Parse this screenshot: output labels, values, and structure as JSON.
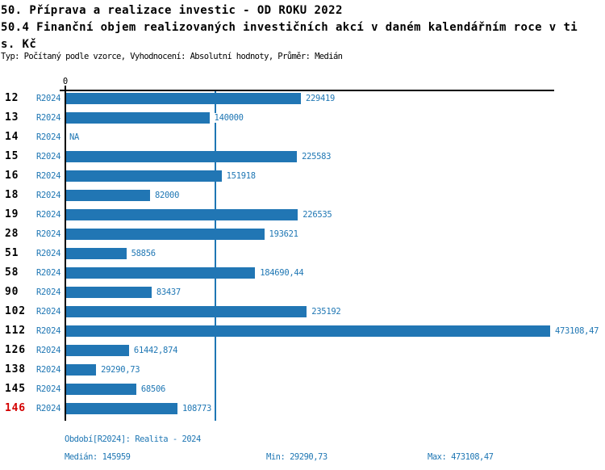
{
  "header": {
    "title_line1": "50. Příprava a realizace investic - OD ROKU 2022",
    "title_line2": "50.4 Finanční objem realizovaných investičních akcí v daném kalendářním roce v ti",
    "title_line3": "s. Kč",
    "meta": "Typ: Počítaný podle vzorce, Vyhodnocení: Absolutní hodnoty, Průměr: Medián"
  },
  "chart_data": {
    "type": "bar",
    "orientation": "horizontal",
    "title": "50.4 Finanční objem realizovaných investičních akcí v daném kalendářním roce v tis. Kč",
    "xlabel": "",
    "ylabel": "",
    "xlim": [
      0,
      477000
    ],
    "x_axis_zero_label": "0",
    "grid": false,
    "median_value": 145959,
    "categories": [
      "12",
      "13",
      "14",
      "15",
      "16",
      "18",
      "19",
      "28",
      "51",
      "58",
      "90",
      "102",
      "112",
      "126",
      "138",
      "145",
      "146"
    ],
    "series": [
      {
        "name": "R2024",
        "values": [
          229419,
          140000,
          null,
          225583,
          151918,
          82000,
          226535,
          193621,
          58856,
          184690.44,
          83437,
          235192,
          473108.47,
          61442.874,
          29290.73,
          68506,
          108773
        ]
      }
    ],
    "rows": [
      {
        "id": "12",
        "period": "R2024",
        "value": 229419,
        "label": "229419",
        "highlight": false
      },
      {
        "id": "13",
        "period": "R2024",
        "value": 140000,
        "label": "140000",
        "highlight": false
      },
      {
        "id": "14",
        "period": "R2024",
        "value": null,
        "label": "NA",
        "highlight": false
      },
      {
        "id": "15",
        "period": "R2024",
        "value": 225583,
        "label": "225583",
        "highlight": false
      },
      {
        "id": "16",
        "period": "R2024",
        "value": 151918,
        "label": "151918",
        "highlight": false
      },
      {
        "id": "18",
        "period": "R2024",
        "value": 82000,
        "label": "82000",
        "highlight": false
      },
      {
        "id": "19",
        "period": "R2024",
        "value": 226535,
        "label": "226535",
        "highlight": false
      },
      {
        "id": "28",
        "period": "R2024",
        "value": 193621,
        "label": "193621",
        "highlight": false
      },
      {
        "id": "51",
        "period": "R2024",
        "value": 58856,
        "label": "58856",
        "highlight": false
      },
      {
        "id": "58",
        "period": "R2024",
        "value": 184690.44,
        "label": "184690,44",
        "highlight": false
      },
      {
        "id": "90",
        "period": "R2024",
        "value": 83437,
        "label": "83437",
        "highlight": false
      },
      {
        "id": "102",
        "period": "R2024",
        "value": 235192,
        "label": "235192",
        "highlight": false
      },
      {
        "id": "112",
        "period": "R2024",
        "value": 473108.47,
        "label": "473108,47",
        "highlight": false
      },
      {
        "id": "126",
        "period": "R2024",
        "value": 61442.874,
        "label": "61442,874",
        "highlight": false
      },
      {
        "id": "138",
        "period": "R2024",
        "value": 29290.73,
        "label": "29290,73",
        "highlight": false
      },
      {
        "id": "145",
        "period": "R2024",
        "value": 68506,
        "label": "68506",
        "highlight": false
      },
      {
        "id": "146",
        "period": "R2024",
        "value": 108773,
        "label": "108773",
        "highlight": true
      }
    ]
  },
  "footer": {
    "period_info": "Období[R2024]: Realita - 2024",
    "median": "Medián: 145959",
    "min": "Min: 29290,73",
    "max": "Max: 473108,47"
  },
  "colors": {
    "bar": "#2176b4",
    "blue_text": "#1f77b4",
    "median_line": "#1f77b4",
    "highlight_id": "#d40000",
    "axis": "#000000"
  }
}
